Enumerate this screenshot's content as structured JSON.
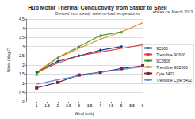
{
  "chart_data": {
    "type": "line",
    "title": "Hub Motor Thermal Conductivity from Stator to Shell",
    "subtitle": "Derived from steady state no-load temperatures",
    "annotation": "ebikes.ca, March 2013",
    "x_label": "Wind (m/s)",
    "y_label": "Watts / deg C",
    "xlim": [
      0.5,
      6
    ],
    "xticks": [
      1,
      1.5,
      2,
      2.5,
      3,
      3.5,
      4,
      4.5,
      5,
      5.5,
      6
    ],
    "ylim": [
      0,
      4.5
    ],
    "yticks": [
      0,
      0.5,
      1,
      1.5,
      2,
      2.5,
      3,
      3.5,
      4,
      4.5
    ],
    "grid": true,
    "legend": "right",
    "series": [
      {
        "name": "9C600",
        "color": "#1f3a93",
        "marker": "diamond",
        "line_style": "solid",
        "x": [
          1,
          2,
          3,
          4,
          5
        ],
        "values": [
          1.6,
          2.2,
          2.5,
          2.8,
          3.0
        ]
      },
      {
        "name": "Trendline 9C600",
        "color": "#e03c31",
        "marker": "none",
        "line_style": "solid",
        "x": [
          1,
          2,
          3,
          4,
          5,
          6
        ],
        "values": [
          1.6,
          2.1,
          2.5,
          2.7,
          2.9,
          3.1
        ]
      },
      {
        "name": "9C2806",
        "color": "#3a9a2a",
        "marker": "triangle",
        "line_style": "solid",
        "x": [
          1,
          2,
          3,
          4,
          5
        ],
        "values": [
          1.5,
          2.4,
          3.0,
          3.6,
          3.8
        ]
      },
      {
        "name": "Trendline 9C2806",
        "color": "#f08a24",
        "marker": "none",
        "line_style": "solid",
        "x": [
          1,
          2,
          3,
          4,
          5,
          6
        ],
        "values": [
          1.6,
          2.4,
          2.9,
          3.4,
          3.8,
          4.3
        ]
      },
      {
        "name": "Cyte 5402",
        "color": "#7a1f3d",
        "marker": "square",
        "line_style": "solid",
        "x": [
          1,
          2,
          3,
          4,
          5,
          6
        ],
        "values": [
          0.75,
          1.05,
          1.45,
          1.6,
          1.8,
          1.95
        ]
      },
      {
        "name": "Trendline Cyte 5402",
        "color": "#5b8fd6",
        "marker": "none",
        "line_style": "solid",
        "x": [
          1,
          2,
          3,
          4,
          5,
          6
        ],
        "values": [
          0.95,
          1.2,
          1.4,
          1.6,
          1.75,
          1.9
        ]
      }
    ]
  }
}
